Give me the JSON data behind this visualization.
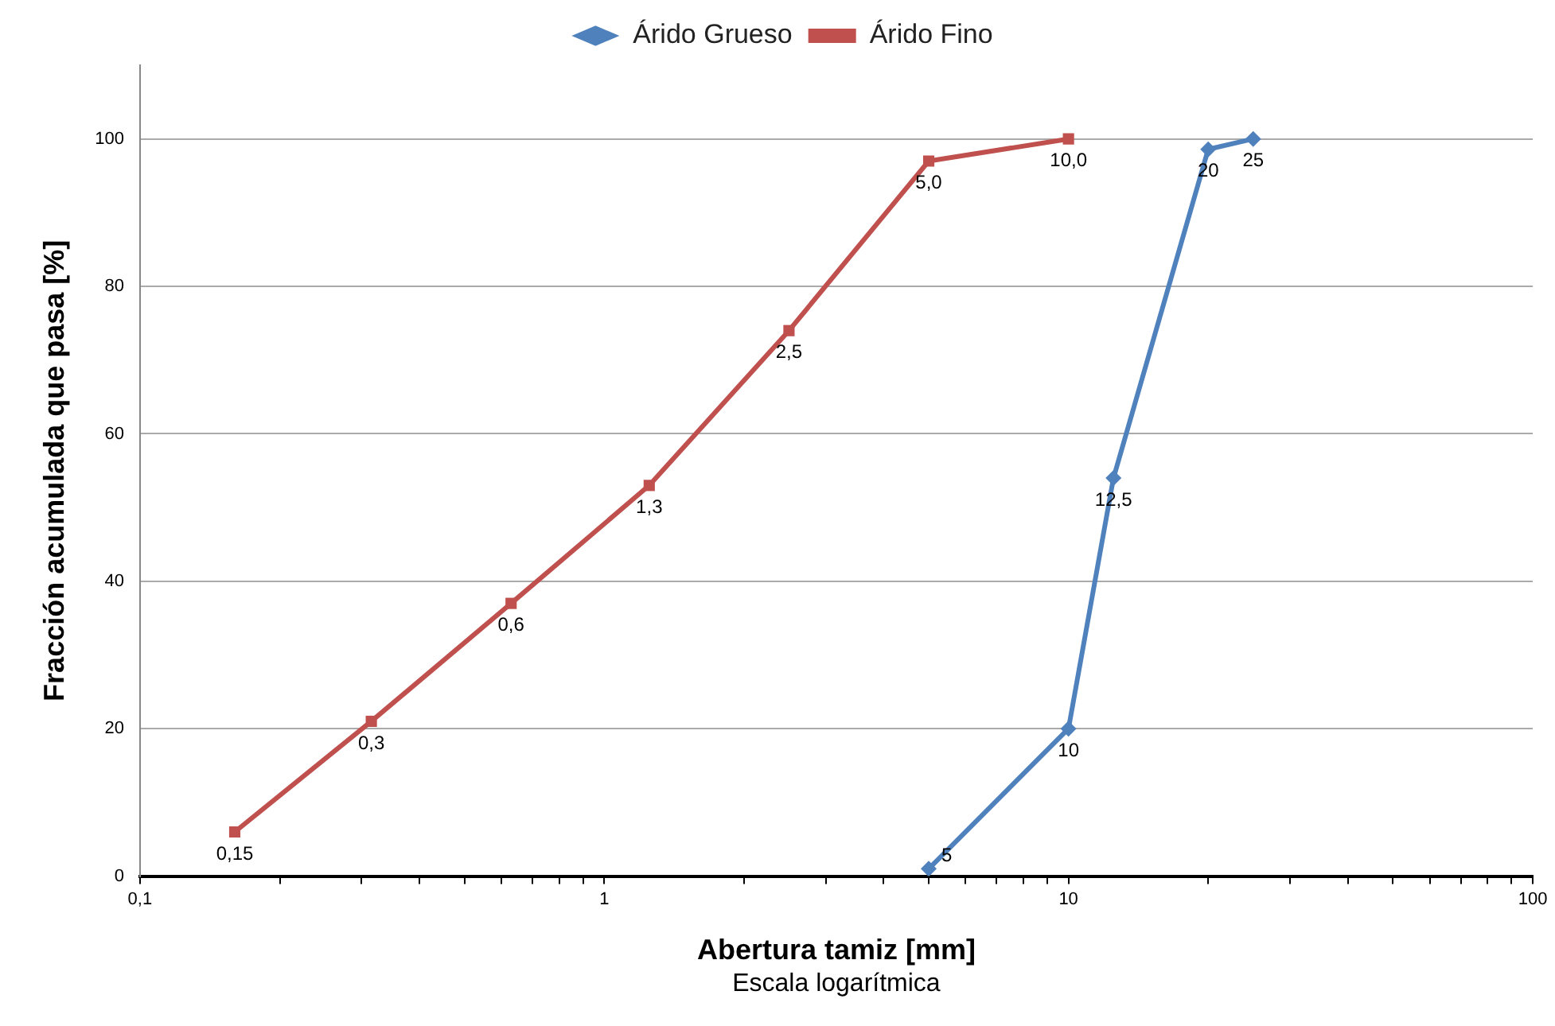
{
  "chart_data": {
    "type": "line",
    "xlabel": "Abertura tamiz [mm]",
    "ylabel": "Fracción acumulada que pasa [%]",
    "log": "x",
    "xlim": [
      0.1,
      100
    ],
    "ylim": [
      0,
      110
    ],
    "annotations": [
      "Escala logarítmica",
      {
        "text": "5",
        "x": 5,
        "y": 1
      },
      {
        "text": "10",
        "x": 10,
        "y": 20
      },
      {
        "text": "12,5",
        "x": 12.5,
        "y": 54
      },
      {
        "text": "20",
        "x": 20,
        "y": 98.6
      },
      {
        "text": "25",
        "x": 25,
        "y": 100
      },
      {
        "text": "0,15",
        "x": 0.16,
        "y": 6
      },
      {
        "text": "0,3",
        "x": 0.315,
        "y": 21
      },
      {
        "text": "0,6",
        "x": 0.63,
        "y": 37
      },
      {
        "text": "1,3",
        "x": 1.25,
        "y": 53
      },
      {
        "text": "2,5",
        "x": 2.5,
        "y": 74
      },
      {
        "text": "5,0",
        "x": 5,
        "y": 97
      },
      {
        "text": "10,0",
        "x": 10,
        "y": 100
      }
    ],
    "xticks": [
      {
        "value": 0.1,
        "label": "0,1"
      },
      {
        "value": 0.2,
        "label": null
      },
      {
        "value": 0.3,
        "label": null
      },
      {
        "value": 0.4,
        "label": null
      },
      {
        "value": 0.5,
        "label": null
      },
      {
        "value": 0.6,
        "label": null
      },
      {
        "value": 0.7,
        "label": null
      },
      {
        "value": 0.8,
        "label": null
      },
      {
        "value": 0.9,
        "label": null
      },
      1,
      {
        "value": 2,
        "label": null
      },
      {
        "value": 3,
        "label": null
      },
      {
        "value": 4,
        "label": null
      },
      {
        "value": 5,
        "label": null
      },
      {
        "value": 6,
        "label": null
      },
      {
        "value": 7,
        "label": null
      },
      {
        "value": 8,
        "label": null
      },
      {
        "value": 9,
        "label": null
      },
      10,
      {
        "value": 20,
        "label": null
      },
      {
        "value": 30,
        "label": null
      },
      {
        "value": 40,
        "label": null
      },
      {
        "value": 50,
        "label": null
      },
      {
        "value": 60,
        "label": null
      },
      {
        "value": 70,
        "label": null
      },
      {
        "value": 80,
        "label": null
      },
      {
        "value": 90,
        "label": null
      },
      100
    ],
    "yticks": [
      0,
      20,
      40,
      60,
      80,
      100
    ],
    "grid": "y",
    "legend": "top",
    "line_style": "solid",
    "series": [
      {
        "name": "Árido Grueso",
        "color": "#4f81bd",
        "marker": "diamond",
        "x": [
          5,
          10,
          12.5,
          20,
          25
        ],
        "values": [
          1,
          20,
          54,
          98.6,
          100
        ]
      },
      {
        "name": "Árido Fino",
        "color": "#c0504d",
        "marker": "square",
        "x": [
          0.16,
          0.315,
          0.63,
          1.25,
          2.5,
          5,
          10
        ],
        "values": [
          6,
          21,
          37,
          53,
          74,
          97,
          100
        ]
      }
    ]
  }
}
